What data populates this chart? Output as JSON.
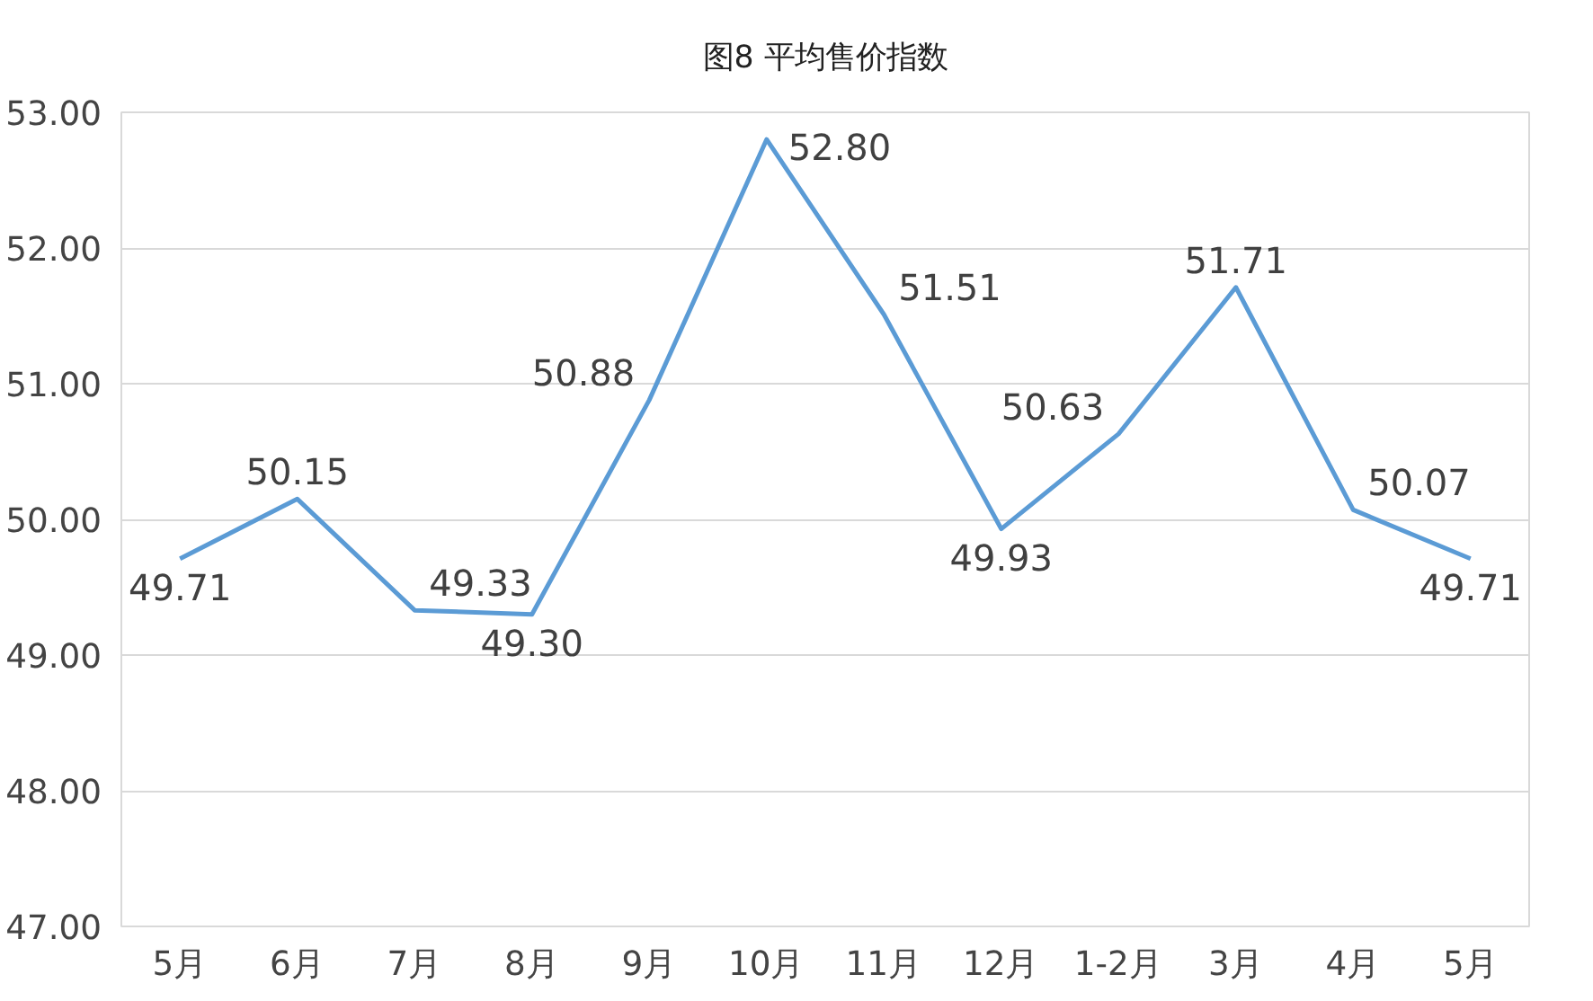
{
  "chart_data": {
    "type": "line",
    "title": "图8 平均售价指数",
    "categories": [
      "5月",
      "6月",
      "7月",
      "8月",
      "9月",
      "10月",
      "11月",
      "12月",
      "1-2月",
      "3月",
      "4月",
      "5月"
    ],
    "series": [
      {
        "color": "#5b9bd5",
        "values": [
          49.71,
          50.15,
          49.33,
          49.3,
          50.88,
          52.8,
          51.51,
          49.93,
          50.63,
          51.71,
          50.07,
          49.71
        ],
        "value_labels": [
          "49.71",
          "50.15",
          "49.33",
          "49.30",
          "50.88",
          "52.80",
          "51.51",
          "49.93",
          "50.63",
          "51.71",
          "50.07",
          "49.71"
        ]
      }
    ],
    "ylim": [
      47,
      53
    ],
    "yticks": [
      {
        "value": 47,
        "label": "47.00"
      },
      {
        "value": 48,
        "label": "48.00"
      },
      {
        "value": 49,
        "label": "49.00"
      },
      {
        "value": 50,
        "label": "50.00"
      },
      {
        "value": 51,
        "label": "51.00"
      },
      {
        "value": 52,
        "label": "52.00"
      },
      {
        "value": 53,
        "label": "53.00"
      }
    ],
    "grid": "y",
    "marker": "none",
    "line_style": "solid"
  }
}
